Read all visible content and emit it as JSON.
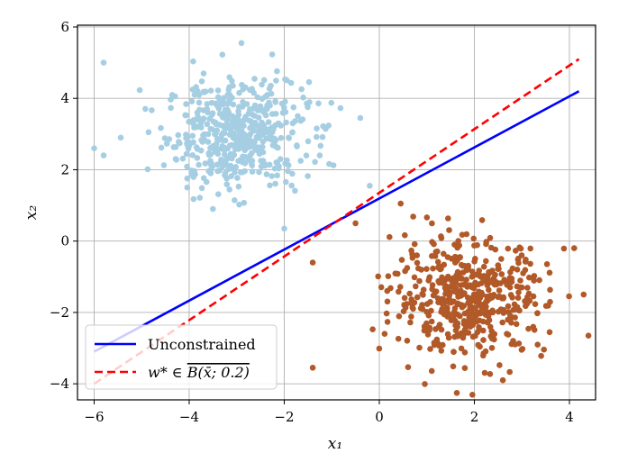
{
  "chart_data": {
    "type": "scatter",
    "xlabel": "x₁",
    "ylabel": "x₂",
    "xlim": [
      -6.35,
      4.55
    ],
    "ylim": [
      -4.45,
      6.05
    ],
    "xticks": [
      -6,
      -4,
      -2,
      0,
      2,
      4
    ],
    "yticks": [
      -4,
      -2,
      0,
      2,
      4,
      6
    ],
    "xtick_labels": [
      "−6",
      "−4",
      "−2",
      "0",
      "2",
      "4"
    ],
    "ytick_labels": [
      "−4",
      "−2",
      "0",
      "2",
      "4",
      "6"
    ],
    "grid": true,
    "legend_position": "lower-left",
    "clusters": [
      {
        "color": "#a6cee3",
        "center": [
          -3,
          3
        ],
        "std": 0.75,
        "n": 500,
        "notable_points": [
          [
            -5.8,
            5.0
          ],
          [
            -6.0,
            2.6
          ],
          [
            -5.8,
            2.4
          ],
          [
            -2.9,
            5.55
          ],
          [
            -3.5,
            0.9
          ],
          [
            -2.0,
            0.35
          ],
          [
            -0.2,
            1.55
          ],
          [
            -0.4,
            3.45
          ]
        ]
      },
      {
        "color": "#b15928",
        "center": [
          1.9,
          -1.6
        ],
        "std": 0.8,
        "n": 500,
        "notable_points": [
          [
            -1.4,
            -3.55
          ],
          [
            -1.4,
            -0.6
          ],
          [
            0.45,
            1.05
          ],
          [
            2.6,
            -3.9
          ],
          [
            4.1,
            -0.2
          ],
          [
            4.3,
            -1.5
          ],
          [
            4.4,
            -2.65
          ],
          [
            -0.5,
            0.5
          ]
        ]
      }
    ],
    "series": [
      {
        "name": "Unconstrained",
        "style": "solid",
        "color": "#0000ff",
        "x": [
          -6.0,
          4.2
        ],
        "y": [
          -3.1,
          4.2
        ]
      },
      {
        "name": "w* ∈ B(x̄; 0.2)",
        "style": "dashed",
        "color": "#ff0000",
        "x": [
          -6.0,
          4.2
        ],
        "y": [
          -4.0,
          5.1
        ]
      }
    ],
    "legend": {
      "unconstrained_label": "Unconstrained",
      "constrained_label_prefix": "w* ∈ ",
      "constrained_label_overline": "B(x̄; 0.2)"
    }
  }
}
